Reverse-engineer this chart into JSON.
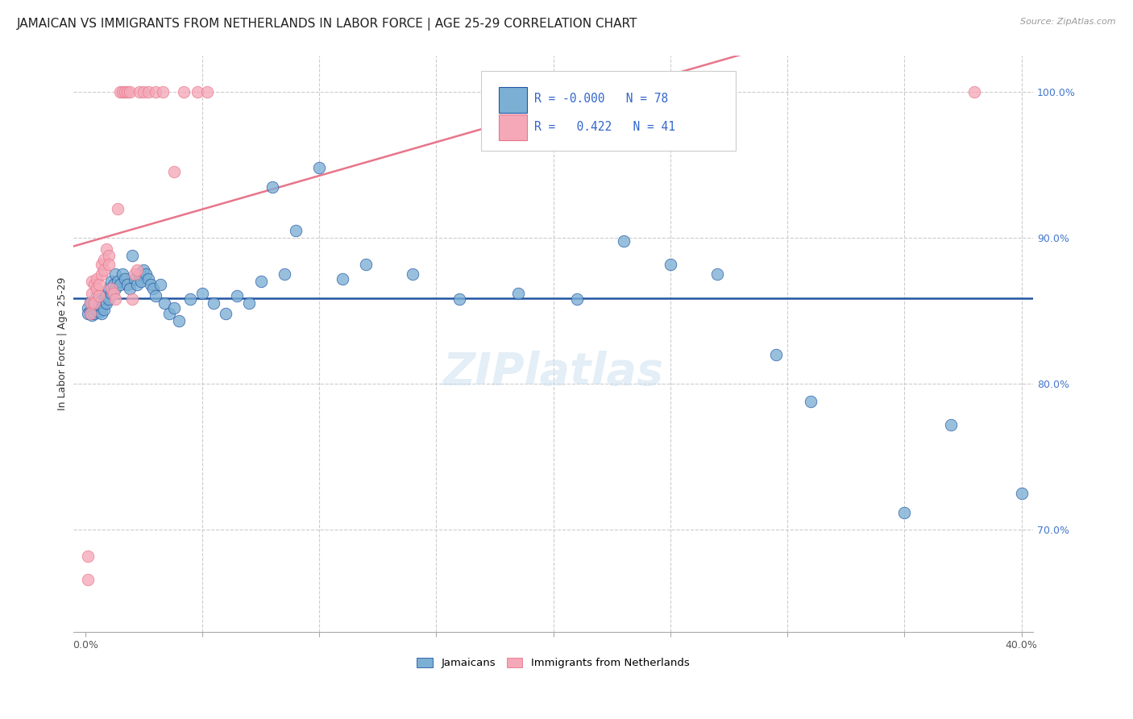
{
  "title": "JAMAICAN VS IMMIGRANTS FROM NETHERLANDS IN LABOR FORCE | AGE 25-29 CORRELATION CHART",
  "source": "Source: ZipAtlas.com",
  "ylabel": "In Labor Force | Age 25-29",
  "xlim": [
    -0.005,
    0.405
  ],
  "ylim": [
    0.63,
    1.025
  ],
  "xtick_positions": [
    0.0,
    0.05,
    0.1,
    0.15,
    0.2,
    0.25,
    0.3,
    0.35,
    0.4
  ],
  "xticklabels": [
    "0.0%",
    "",
    "",
    "",
    "",
    "",
    "",
    "",
    "40.0%"
  ],
  "yticks_right": [
    0.7,
    0.8,
    0.9,
    1.0
  ],
  "ytick_labels_right": [
    "70.0%",
    "80.0%",
    "90.0%",
    "100.0%"
  ],
  "blue_color": "#7bafd4",
  "pink_color": "#f4a8b8",
  "blue_line_color": "#2155a3",
  "pink_line_color": "#e8758a",
  "legend_r_blue": "-0.000",
  "legend_n_blue": "78",
  "legend_r_pink": "0.422",
  "legend_n_pink": "41",
  "blue_points_x": [
    0.001,
    0.001,
    0.002,
    0.002,
    0.002,
    0.003,
    0.003,
    0.003,
    0.004,
    0.004,
    0.004,
    0.005,
    0.005,
    0.005,
    0.006,
    0.006,
    0.006,
    0.007,
    0.007,
    0.007,
    0.008,
    0.008,
    0.009,
    0.009,
    0.01,
    0.01,
    0.011,
    0.011,
    0.012,
    0.013,
    0.013,
    0.014,
    0.015,
    0.016,
    0.017,
    0.018,
    0.019,
    0.02,
    0.021,
    0.022,
    0.023,
    0.024,
    0.025,
    0.026,
    0.027,
    0.028,
    0.029,
    0.03,
    0.032,
    0.034,
    0.036,
    0.038,
    0.04,
    0.045,
    0.05,
    0.055,
    0.06,
    0.065,
    0.07,
    0.075,
    0.08,
    0.085,
    0.09,
    0.1,
    0.11,
    0.12,
    0.14,
    0.16,
    0.185,
    0.21,
    0.23,
    0.25,
    0.27,
    0.295,
    0.31,
    0.35,
    0.37,
    0.4
  ],
  "blue_points_y": [
    0.852,
    0.848,
    0.856,
    0.85,
    0.848,
    0.855,
    0.85,
    0.847,
    0.856,
    0.852,
    0.848,
    0.86,
    0.855,
    0.85,
    0.858,
    0.854,
    0.849,
    0.857,
    0.852,
    0.848,
    0.856,
    0.851,
    0.86,
    0.855,
    0.865,
    0.858,
    0.87,
    0.862,
    0.868,
    0.875,
    0.865,
    0.87,
    0.868,
    0.875,
    0.872,
    0.868,
    0.865,
    0.888,
    0.872,
    0.868,
    0.875,
    0.87,
    0.878,
    0.875,
    0.872,
    0.868,
    0.865,
    0.86,
    0.868,
    0.855,
    0.848,
    0.852,
    0.843,
    0.858,
    0.862,
    0.855,
    0.848,
    0.86,
    0.855,
    0.87,
    0.935,
    0.875,
    0.905,
    0.948,
    0.872,
    0.882,
    0.875,
    0.858,
    0.862,
    0.858,
    0.898,
    0.882,
    0.875,
    0.82,
    0.788,
    0.712,
    0.772,
    0.725
  ],
  "pink_points_x": [
    0.001,
    0.001,
    0.002,
    0.002,
    0.003,
    0.003,
    0.004,
    0.004,
    0.005,
    0.005,
    0.006,
    0.006,
    0.007,
    0.007,
    0.008,
    0.008,
    0.009,
    0.01,
    0.01,
    0.011,
    0.012,
    0.013,
    0.014,
    0.015,
    0.016,
    0.017,
    0.018,
    0.019,
    0.02,
    0.021,
    0.022,
    0.023,
    0.025,
    0.027,
    0.03,
    0.033,
    0.038,
    0.042,
    0.048,
    0.052,
    0.38
  ],
  "pink_points_y": [
    0.682,
    0.666,
    0.855,
    0.848,
    0.87,
    0.862,
    0.868,
    0.855,
    0.872,
    0.865,
    0.868,
    0.86,
    0.882,
    0.875,
    0.885,
    0.878,
    0.892,
    0.888,
    0.882,
    0.865,
    0.862,
    0.858,
    0.92,
    1.0,
    1.0,
    1.0,
    1.0,
    1.0,
    0.858,
    0.875,
    0.878,
    1.0,
    1.0,
    1.0,
    1.0,
    1.0,
    0.945,
    1.0,
    1.0,
    1.0,
    1.0
  ]
}
